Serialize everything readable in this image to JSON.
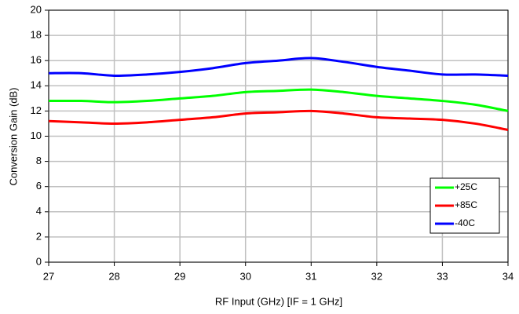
{
  "chart_data": {
    "type": "line",
    "x_label": "RF Input (GHz) [IF = 1 GHz]",
    "y_label": "Conversion Gain (dB)",
    "x": [
      27,
      27.5,
      28,
      28.5,
      29,
      29.5,
      30,
      30.5,
      31,
      31.5,
      32,
      32.5,
      33,
      33.5,
      34
    ],
    "series": [
      {
        "name": "+25C",
        "color": "#00ff00",
        "values": [
          12.8,
          12.8,
          12.7,
          12.8,
          13.0,
          13.2,
          13.5,
          13.6,
          13.7,
          13.5,
          13.2,
          13.0,
          12.8,
          12.5,
          12.0
        ]
      },
      {
        "name": "+85C",
        "color": "#ff0000",
        "values": [
          11.2,
          11.1,
          11.0,
          11.1,
          11.3,
          11.5,
          11.8,
          11.9,
          12.0,
          11.8,
          11.5,
          11.4,
          11.3,
          11.0,
          10.5
        ]
      },
      {
        "name": "-40C",
        "color": "#0000ff",
        "values": [
          15.0,
          15.0,
          14.8,
          14.9,
          15.1,
          15.4,
          15.8,
          16.0,
          16.2,
          15.9,
          15.5,
          15.2,
          14.9,
          14.9,
          14.8
        ]
      }
    ],
    "xlim": [
      27,
      34
    ],
    "xticks": [
      27,
      28,
      29,
      30,
      31,
      32,
      33,
      34
    ],
    "ylim": [
      0,
      20
    ],
    "yticks": [
      0,
      2,
      4,
      6,
      8,
      10,
      12,
      14,
      16,
      18,
      20
    ],
    "grid": true,
    "legend": "lower-right"
  }
}
